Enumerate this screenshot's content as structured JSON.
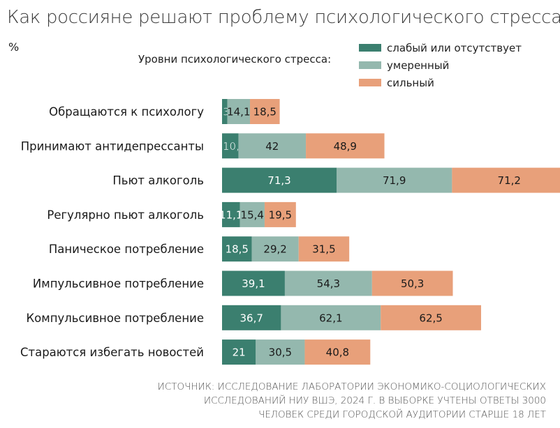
{
  "chart_data": {
    "type": "bar",
    "stacked": true,
    "orientation": "horizontal",
    "title": "Как россияне решают проблему психологического стресса",
    "unit": "%",
    "legend_title": "Уровни психологического стресса:",
    "legend_position": "top-right",
    "categories": [
      "Обращаются к психологу",
      "Принимают антидепрессанты",
      "Пьют алкоголь",
      "Регулярно пьют алкоголь",
      "Паническое потребление",
      "Импульсивное потребление",
      "Компульсивное потребление",
      "Стараются избегать новостей"
    ],
    "series": [
      {
        "name": "слабый или отсутствует",
        "color": "#3b7f6f",
        "values": [
          3.3,
          10.2,
          71.3,
          11.1,
          18.5,
          39.1,
          36.7,
          21
        ],
        "labels": [
          "3,3",
          "10,2",
          "71,3",
          "11,1",
          "18,5",
          "39,1",
          "36,7",
          "21"
        ]
      },
      {
        "name": "умеренный",
        "color": "#94b8ae",
        "values": [
          14.1,
          42,
          71.9,
          15.4,
          29.2,
          54.3,
          62.1,
          30.5
        ],
        "labels": [
          "14,1",
          "42",
          "71,9",
          "15,4",
          "29,2",
          "54,3",
          "62,1",
          "30,5"
        ]
      },
      {
        "name": "сильный",
        "color": "#e8a07a",
        "values": [
          18.5,
          48.9,
          71.2,
          19.5,
          31.5,
          50.3,
          62.5,
          40.8
        ],
        "labels": [
          "18,5",
          "48,9",
          "71,2",
          "19,5",
          "31,5",
          "50,3",
          "62,5",
          "40,8"
        ]
      }
    ],
    "grid": false
  },
  "source_lines": [
    "ИСТОЧНИК: ИССЛЕДОВАНИЕ ЛАБОРАТОРИИ ЭКОНОМИКО-СОЦИОЛОГИЧЕСКИХ",
    "ИССЛЕДОВАНИЙ НИУ ВШЭ, 2024 Г. В ВЫБОРКЕ УЧТЕНЫ ОТВЕТЫ 3000",
    "ЧЕЛОВЕК СРЕДИ ГОРОДСКОЙ АУДИТОРИИ СТАРШЕ 18 ЛЕТ"
  ]
}
